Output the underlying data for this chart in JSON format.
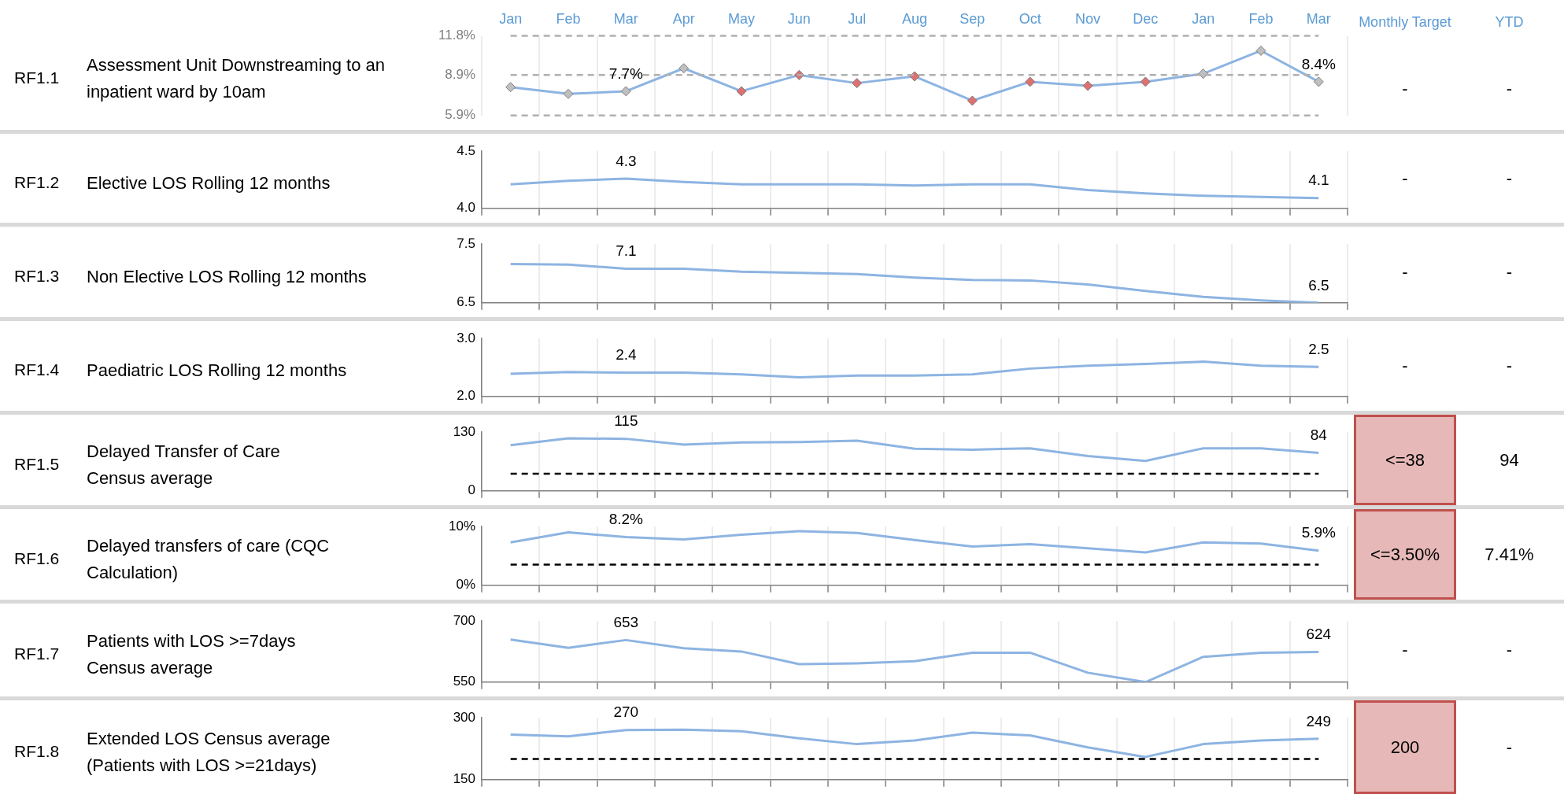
{
  "chart_data": [
    {
      "type": "line",
      "categories": [
        "Jan",
        "Feb",
        "Mar",
        "Apr",
        "May",
        "Jun",
        "Jul",
        "Aug",
        "Sep",
        "Oct",
        "Nov",
        "Dec",
        "Jan",
        "Feb",
        "Mar"
      ],
      "series": [
        {
          "color": "#8db4e2",
          "colors": [
            "#bfbfbf",
            "#bfbfbf",
            "#bfbfbf",
            "#bfbfbf",
            "#e07070",
            "#e07070",
            "#e07070",
            "#e07070",
            "#e07070",
            "#e07070",
            "#e07070",
            "#e07070",
            "#bfbfbf",
            "#bfbfbf",
            "#bfbfbf"
          ],
          "values": [
            8.0,
            7.5,
            7.7,
            9.4,
            7.7,
            8.9,
            8.3,
            8.8,
            7.0,
            8.4,
            8.1,
            8.4,
            9.0,
            10.7,
            8.4
          ],
          "value_labels": [
            null,
            null,
            "7.7%",
            null,
            null,
            null,
            null,
            null,
            null,
            null,
            null,
            null,
            null,
            null,
            "8.4%"
          ]
        }
      ],
      "ylim": [
        5.9,
        11.8
      ],
      "yticks": [
        {
          "value": 5.9,
          "label": "5.9%"
        },
        {
          "value": 8.9,
          "label": "8.9%"
        },
        {
          "value": 11.8,
          "label": "11.8%"
        }
      ],
      "grid": "x",
      "marker": "diamond",
      "ref_lines": [
        {
          "axis": "y",
          "value": 5.9,
          "color": "#b0b0b0",
          "line_style": "dashed"
        },
        {
          "axis": "y",
          "value": 8.9,
          "color": "#b0b0b0",
          "line_style": "dashed"
        },
        {
          "axis": "y",
          "value": 11.8,
          "color": "#b0b0b0",
          "line_style": "dashed"
        }
      ],
      "annotations": [
        "RF1.1",
        "Assessment Unit Downstreaming to an\ninpatient ward by 10am",
        "Monthly Target",
        "YTD",
        "-",
        "-"
      ]
    },
    {
      "type": "line",
      "categories": [
        null,
        null,
        null,
        null,
        null,
        null,
        null,
        null,
        null,
        null,
        null,
        null,
        null,
        null,
        null
      ],
      "series": [
        {
          "color": "#8db4e2",
          "values": [
            4.21,
            4.24,
            4.26,
            4.23,
            4.21,
            4.21,
            4.21,
            4.2,
            4.21,
            4.21,
            4.16,
            4.13,
            4.11,
            4.1,
            4.09
          ],
          "value_labels": [
            null,
            null,
            "4.3",
            null,
            null,
            null,
            null,
            null,
            null,
            null,
            null,
            null,
            null,
            null,
            "4.1"
          ]
        }
      ],
      "ylim": [
        4.0,
        4.5
      ],
      "yticks": [
        {
          "value": 4.0,
          "label": "4.0"
        },
        {
          "value": 4.5,
          "label": "4.5"
        }
      ],
      "grid": "x",
      "marker": "none",
      "tick_labels": "y",
      "annotations": [
        "RF1.2",
        "Elective LOS Rolling 12 months",
        "-",
        "-"
      ]
    },
    {
      "type": "line",
      "categories": [
        null,
        null,
        null,
        null,
        null,
        null,
        null,
        null,
        null,
        null,
        null,
        null,
        null,
        null,
        null
      ],
      "series": [
        {
          "color": "#8db4e2",
          "values": [
            7.16,
            7.15,
            7.08,
            7.08,
            7.03,
            7.01,
            6.99,
            6.93,
            6.89,
            6.88,
            6.81,
            6.7,
            6.6,
            6.54,
            6.5
          ],
          "value_labels": [
            null,
            null,
            "7.1",
            null,
            null,
            null,
            null,
            null,
            null,
            null,
            null,
            null,
            null,
            null,
            "6.5"
          ]
        }
      ],
      "ylim": [
        6.5,
        7.5
      ],
      "yticks": [
        6.5,
        7.5
      ],
      "grid": "x",
      "marker": "none",
      "tick_labels": "y",
      "annotations": [
        "RF1.3",
        "Non Elective LOS Rolling 12 months",
        "-",
        "-"
      ]
    },
    {
      "type": "line",
      "categories": [
        null,
        null,
        null,
        null,
        null,
        null,
        null,
        null,
        null,
        null,
        null,
        null,
        null,
        null,
        null
      ],
      "series": [
        {
          "color": "#8db4e2",
          "values": [
            2.39,
            2.42,
            2.41,
            2.41,
            2.38,
            2.33,
            2.36,
            2.36,
            2.38,
            2.48,
            2.53,
            2.56,
            2.6,
            2.53,
            2.51
          ],
          "value_labels": [
            null,
            null,
            "2.4",
            null,
            null,
            null,
            null,
            null,
            null,
            null,
            null,
            null,
            null,
            null,
            "2.5"
          ]
        }
      ],
      "ylim": [
        2.0,
        3.0
      ],
      "yticks": [
        {
          "value": 2.0,
          "label": "2.0"
        },
        {
          "value": 3.0,
          "label": "3.0"
        }
      ],
      "grid": "x",
      "marker": "none",
      "tick_labels": "y",
      "annotations": [
        "RF1.4",
        "Paediatric LOS Rolling 12 months",
        "-",
        "-"
      ]
    },
    {
      "type": "line",
      "categories": [
        null,
        null,
        null,
        null,
        null,
        null,
        null,
        null,
        null,
        null,
        null,
        null,
        null,
        null,
        null
      ],
      "series": [
        {
          "color": "#8db4e2",
          "values": [
            101,
            116,
            115,
            102,
            107,
            108,
            111,
            93,
            91,
            94,
            77,
            66,
            94,
            94,
            84
          ],
          "value_labels": [
            null,
            null,
            "115",
            null,
            null,
            null,
            null,
            null,
            null,
            null,
            null,
            null,
            null,
            null,
            "84"
          ]
        }
      ],
      "ylim": [
        0,
        130
      ],
      "yticks": [
        0,
        130
      ],
      "grid": "x",
      "marker": "none",
      "tick_labels": "y",
      "ref_lines": [
        {
          "axis": "y",
          "value": 38,
          "color": "#000000",
          "line_style": "dashed"
        }
      ],
      "annotations": [
        "RF1.5",
        "Delayed Transfer of Care\nCensus average",
        "<=38",
        "94"
      ]
    },
    {
      "type": "line",
      "categories": [
        null,
        null,
        null,
        null,
        null,
        null,
        null,
        null,
        null,
        null,
        null,
        null,
        null,
        null,
        null
      ],
      "series": [
        {
          "color": "#8db4e2",
          "values": [
            7.3,
            9.0,
            8.2,
            7.8,
            8.6,
            9.2,
            8.9,
            7.7,
            6.6,
            7.0,
            6.3,
            5.6,
            7.3,
            7.1,
            5.9
          ],
          "value_labels": [
            null,
            null,
            "8.2%",
            null,
            null,
            null,
            null,
            null,
            null,
            null,
            null,
            null,
            null,
            null,
            "5.9%"
          ]
        }
      ],
      "ylim": [
        0,
        10
      ],
      "yticks": [
        {
          "value": 0,
          "label": "0%"
        },
        {
          "value": 10,
          "label": "10%"
        }
      ],
      "grid": "x",
      "marker": "none",
      "tick_labels": "y",
      "ref_lines": [
        {
          "axis": "y",
          "value": 3.5,
          "color": "#000000",
          "line_style": "dashed"
        }
      ],
      "annotations": [
        "RF1.6",
        "Delayed transfers of care (CQC\nCalculation)",
        "<=3.50%",
        "7.41%"
      ]
    },
    {
      "type": "line",
      "categories": [
        null,
        null,
        null,
        null,
        null,
        null,
        null,
        null,
        null,
        null,
        null,
        null,
        null,
        null,
        null
      ],
      "series": [
        {
          "color": "#8db4e2",
          "values": [
            654,
            634,
            653,
            633,
            625,
            594,
            596,
            601,
            622,
            622,
            573,
            550,
            612,
            622,
            624
          ],
          "value_labels": [
            null,
            null,
            "653",
            null,
            null,
            null,
            null,
            null,
            null,
            null,
            null,
            null,
            null,
            null,
            "624"
          ]
        }
      ],
      "ylim": [
        550,
        700
      ],
      "yticks": [
        550,
        700
      ],
      "grid": "x",
      "marker": "none",
      "tick_labels": "y",
      "annotations": [
        "RF1.7",
        "Patients with LOS >=7days\nCensus average",
        "-",
        "-"
      ]
    },
    {
      "type": "line",
      "categories": [
        null,
        null,
        null,
        null,
        null,
        null,
        null,
        null,
        null,
        null,
        null,
        null,
        null,
        null,
        null
      ],
      "series": [
        {
          "color": "#8db4e2",
          "values": [
            259,
            255,
            270,
            271,
            267,
            250,
            236,
            245,
            264,
            257,
            228,
            205,
            236,
            245,
            249
          ],
          "value_labels": [
            null,
            null,
            "270",
            null,
            null,
            null,
            null,
            null,
            null,
            null,
            null,
            null,
            null,
            null,
            "249"
          ]
        }
      ],
      "ylim": [
        150,
        300
      ],
      "yticks": [
        150,
        300
      ],
      "grid": "x",
      "marker": "none",
      "tick_labels": "y",
      "ref_lines": [
        {
          "axis": "y",
          "value": 200,
          "color": "#000000",
          "line_style": "dashed"
        }
      ],
      "annotations": [
        "RF1.8",
        "Extended LOS Census average\n(Patients with LOS >=21days)",
        "200",
        "-"
      ]
    }
  ]
}
